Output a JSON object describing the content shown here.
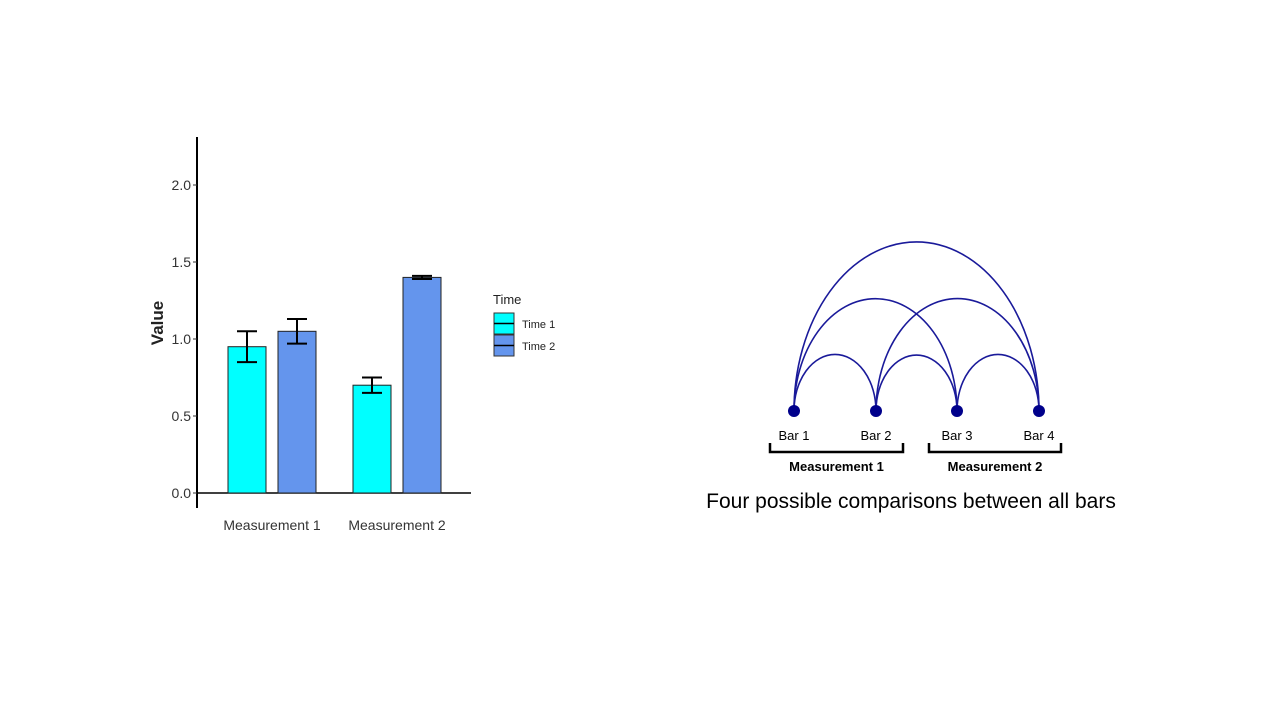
{
  "chart_data": {
    "type": "bar",
    "ylabel": "Value",
    "xlabel": "",
    "ylim": [
      0,
      2.3
    ],
    "yticks": [
      "0.0",
      "0.5",
      "1.0",
      "1.5",
      "2.0"
    ],
    "ytick_values": [
      0,
      0.5,
      1.0,
      1.5,
      2.0
    ],
    "categories": [
      "Measurement 1",
      "Measurement 2"
    ],
    "legend": {
      "title": "Time",
      "placement": "right"
    },
    "series": [
      {
        "name": "Time 1",
        "color": "#00FFFF",
        "values": [
          0.95,
          0.7
        ],
        "error": [
          0.1,
          0.05
        ]
      },
      {
        "name": "Time 2",
        "color": "#6495ED",
        "values": [
          1.05,
          1.4
        ],
        "error": [
          0.08,
          0.01
        ]
      }
    ],
    "grid": false
  },
  "diagram": {
    "nodes": [
      {
        "label": "Bar 1"
      },
      {
        "label": "Bar 2"
      },
      {
        "label": "Bar 3"
      },
      {
        "label": "Bar 4"
      }
    ],
    "groups": [
      {
        "label": "Measurement 1"
      },
      {
        "label": "Measurement 2"
      }
    ],
    "node_color": "#00008B",
    "arc_color": "#1A1A9A",
    "caption": "Four possible comparisons between all bars"
  }
}
